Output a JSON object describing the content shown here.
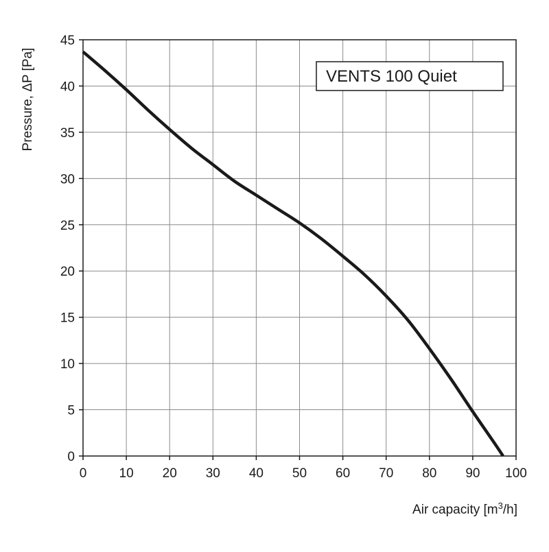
{
  "chart_data": {
    "type": "line",
    "title": "VENTS 100 Quiet",
    "xlabel": "Air capacity [m³/h]",
    "xlabel_main": "Air capacity [m",
    "xlabel_sup": "3",
    "xlabel_end": "/h]",
    "ylabel": "Pressure, ΔP [Pa]",
    "xlim": [
      0,
      100
    ],
    "ylim": [
      0,
      45
    ],
    "xticks": [
      0,
      10,
      20,
      30,
      40,
      50,
      60,
      70,
      80,
      90,
      100
    ],
    "yticks": [
      0,
      5,
      10,
      15,
      20,
      25,
      30,
      35,
      40,
      45
    ],
    "grid": true,
    "legend_position": "top-right",
    "series": [
      {
        "name": "VENTS 100 Quiet",
        "color": "#1a1a1a",
        "x": [
          0,
          5,
          10,
          15,
          20,
          25,
          30,
          35,
          40,
          45,
          50,
          55,
          60,
          65,
          70,
          75,
          80,
          85,
          90,
          95,
          97
        ],
        "y": [
          43.7,
          41.7,
          39.6,
          37.4,
          35.3,
          33.3,
          31.5,
          29.7,
          28.2,
          26.7,
          25.2,
          23.5,
          21.6,
          19.6,
          17.3,
          14.7,
          11.6,
          8.3,
          4.8,
          1.4,
          0
        ]
      }
    ]
  }
}
